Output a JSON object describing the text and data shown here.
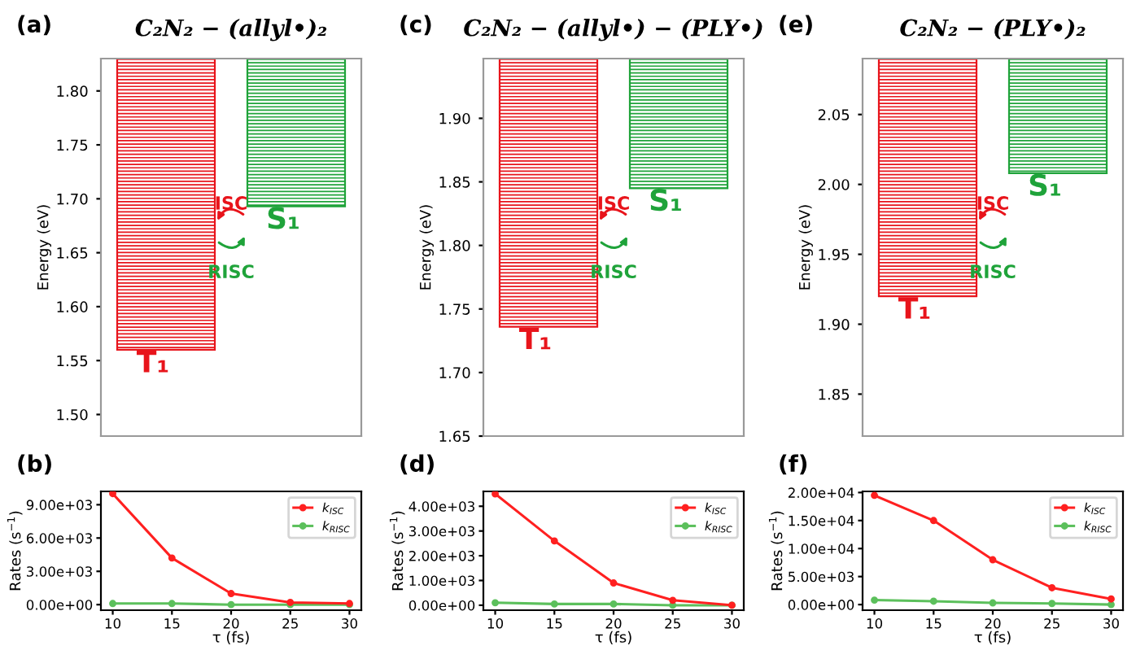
{
  "chart_data": [
    {
      "type": "bar",
      "title": "C₂N₂ − (allyl•)₂",
      "ylabel": "Energy (eV)",
      "annotations": [
        "(a)",
        "ISC",
        "RISC"
      ],
      "categories": [
        "T₁",
        "S₁"
      ],
      "base": [
        1.56,
        1.693
      ],
      "values": [
        0.27,
        0.137
      ],
      "colors": [
        "#e8141b",
        "#1fa33a"
      ],
      "ylim": [
        1.48,
        1.83
      ],
      "yticks": [
        {
          "value": 1.5,
          "label": "1.50"
        },
        {
          "value": 1.55,
          "label": "1.55"
        },
        {
          "value": 1.6,
          "label": "1.60"
        },
        {
          "value": 1.65,
          "label": "1.65"
        },
        {
          "value": 1.7,
          "label": "1.70"
        },
        {
          "value": 1.75,
          "label": "1.75"
        },
        {
          "value": 1.8,
          "label": "1.80"
        }
      ]
    },
    {
      "type": "line",
      "annotations": [
        "(b)"
      ],
      "xlabel": "τ (fs)",
      "ylabel": "Rates (s$^{−1}$)",
      "x": [
        10,
        15,
        20,
        25,
        30
      ],
      "xlim": [
        9,
        31
      ],
      "xticks": [
        10,
        15,
        20,
        25,
        30
      ],
      "ylim": [
        -500,
        10200
      ],
      "yticks": [
        {
          "value": 0,
          "label": "0.00e+00"
        },
        {
          "value": 3000,
          "label": "3.00e+03"
        },
        {
          "value": 6000,
          "label": "6.00e+03"
        },
        {
          "value": 9000,
          "label": "9.00e+03"
        }
      ],
      "legend": "top right",
      "marker": "circle",
      "series": [
        {
          "name": "k$_{ISC}$",
          "color": "#ff2020",
          "values": [
            10000,
            4200,
            1000,
            200,
            100
          ]
        },
        {
          "name": "k$_{RISC}$",
          "color": "#5cc05c",
          "values": [
            100,
            100,
            0,
            0,
            0
          ]
        }
      ]
    },
    {
      "type": "bar",
      "title": "C₂N₂ − (allyl•) − (PLY•)",
      "ylabel": "Energy (eV)",
      "annotations": [
        "(c)",
        "ISC",
        "RISC"
      ],
      "categories": [
        "T₁",
        "S₁"
      ],
      "base": [
        1.736,
        1.845
      ],
      "values": [
        0.211,
        0.102
      ],
      "colors": [
        "#e8141b",
        "#1fa33a"
      ],
      "ylim": [
        1.65,
        1.947
      ],
      "yticks": [
        {
          "value": 1.65,
          "label": "1.65"
        },
        {
          "value": 1.7,
          "label": "1.70"
        },
        {
          "value": 1.75,
          "label": "1.75"
        },
        {
          "value": 1.8,
          "label": "1.80"
        },
        {
          "value": 1.85,
          "label": "1.85"
        },
        {
          "value": 1.9,
          "label": "1.90"
        }
      ]
    },
    {
      "type": "line",
      "annotations": [
        "(d)"
      ],
      "xlabel": "τ (fs)",
      "ylabel": "Rates (s$^{−1}$)",
      "x": [
        10,
        15,
        20,
        25,
        30
      ],
      "xlim": [
        9,
        31
      ],
      "xticks": [
        10,
        15,
        20,
        25,
        30
      ],
      "ylim": [
        -200,
        4600
      ],
      "yticks": [
        {
          "value": 0,
          "label": "0.00e+00"
        },
        {
          "value": 1000,
          "label": "1.00e+03"
        },
        {
          "value": 2000,
          "label": "2.00e+03"
        },
        {
          "value": 3000,
          "label": "3.00e+03"
        },
        {
          "value": 4000,
          "label": "4.00e+03"
        }
      ],
      "legend": "top right",
      "marker": "circle",
      "series": [
        {
          "name": "k$_{ISC}$",
          "color": "#ff2020",
          "values": [
            4500,
            2600,
            900,
            200,
            0
          ]
        },
        {
          "name": "k$_{RISC}$",
          "color": "#5cc05c",
          "values": [
            100,
            50,
            50,
            0,
            0
          ]
        }
      ]
    },
    {
      "type": "bar",
      "title": "C₂N₂ − (PLY•)₂",
      "ylabel": "Energy (eV)",
      "annotations": [
        "(e)",
        "ISC",
        "RISC"
      ],
      "categories": [
        "T₁",
        "S₁"
      ],
      "base": [
        1.92,
        2.008
      ],
      "values": [
        0.17,
        0.082
      ],
      "colors": [
        "#e8141b",
        "#1fa33a"
      ],
      "ylim": [
        1.82,
        2.09
      ],
      "yticks": [
        {
          "value": 1.85,
          "label": "1.85"
        },
        {
          "value": 1.9,
          "label": "1.90"
        },
        {
          "value": 1.95,
          "label": "1.95"
        },
        {
          "value": 2.0,
          "label": "2.00"
        },
        {
          "value": 2.05,
          "label": "2.05"
        }
      ]
    },
    {
      "type": "line",
      "annotations": [
        "(f)"
      ],
      "xlabel": "τ (fs)",
      "ylabel": "Rates (s$^{−1}$)",
      "x": [
        10,
        15,
        20,
        25,
        30
      ],
      "xlim": [
        9,
        31
      ],
      "xticks": [
        10,
        15,
        20,
        25,
        30
      ],
      "ylim": [
        -1000,
        20200
      ],
      "yticks": [
        {
          "value": 0,
          "label": "0.00e+00"
        },
        {
          "value": 5000,
          "label": "5.00e+03"
        },
        {
          "value": 10000,
          "label": "1.00e+04"
        },
        {
          "value": 15000,
          "label": "1.50e+04"
        },
        {
          "value": 20000,
          "label": "2.00e+04"
        }
      ],
      "legend": "top right",
      "marker": "circle",
      "series": [
        {
          "name": "k$_{ISC}$",
          "color": "#ff2020",
          "values": [
            19500,
            15000,
            8000,
            3000,
            1000
          ]
        },
        {
          "name": "k$_{RISC}$",
          "color": "#5cc05c",
          "values": [
            800,
            600,
            300,
            200,
            0
          ]
        }
      ]
    }
  ]
}
